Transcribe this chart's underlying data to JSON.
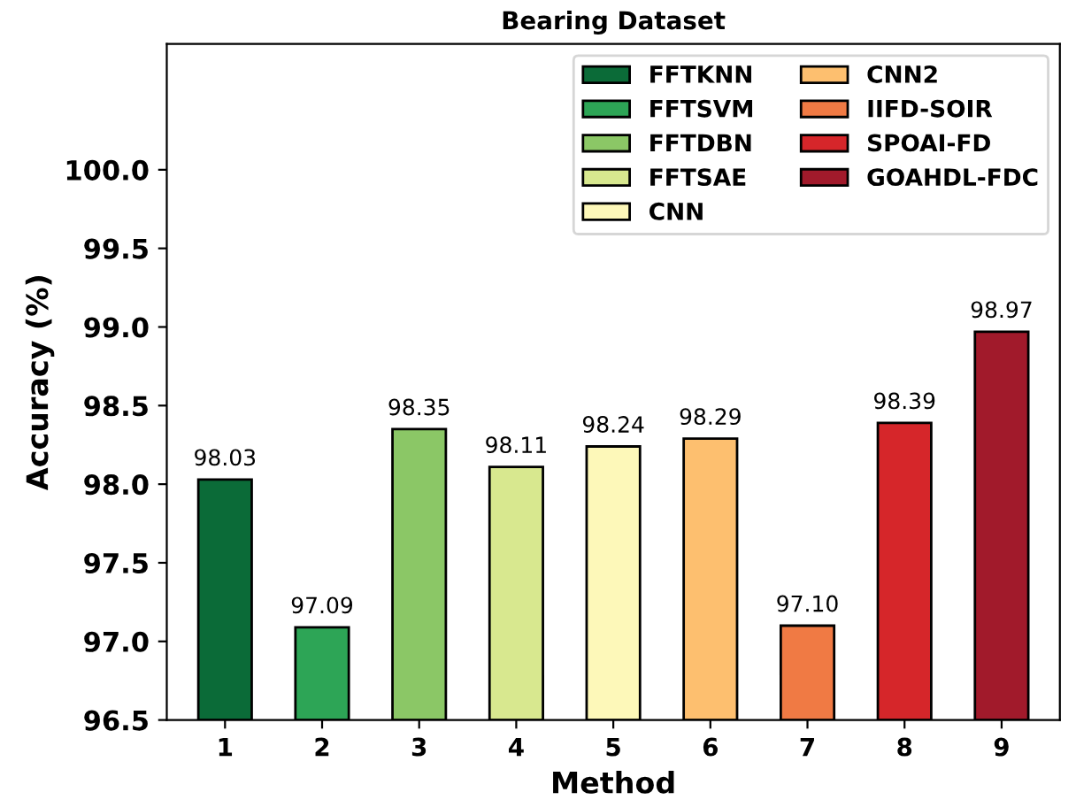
{
  "chart_data": {
    "type": "bar",
    "title": "Bearing Dataset",
    "xlabel": "Method",
    "ylabel": "Accuracy (%)",
    "categories": [
      "1",
      "2",
      "3",
      "4",
      "5",
      "6",
      "7",
      "8",
      "9"
    ],
    "series": [
      {
        "name": "FFTKNN",
        "color": "#0b6b38",
        "values": [
          98.03,
          null,
          null,
          null,
          null,
          null,
          null,
          null,
          null
        ],
        "value_labels": [
          "98.03",
          null,
          null,
          null,
          null,
          null,
          null,
          null,
          null
        ]
      },
      {
        "name": "FFTSVM",
        "color": "#2da556",
        "values": [
          null,
          97.09,
          null,
          null,
          null,
          null,
          null,
          null,
          null
        ],
        "value_labels": [
          null,
          "97.09",
          null,
          null,
          null,
          null,
          null,
          null,
          null
        ]
      },
      {
        "name": "FFTDBN",
        "color": "#8bc766",
        "values": [
          null,
          null,
          98.35,
          null,
          null,
          null,
          null,
          null,
          null
        ],
        "value_labels": [
          null,
          null,
          "98.35",
          null,
          null,
          null,
          null,
          null,
          null
        ]
      },
      {
        "name": "FFTSAE",
        "color": "#d8e88f",
        "values": [
          null,
          null,
          null,
          98.11,
          null,
          null,
          null,
          null,
          null
        ],
        "value_labels": [
          null,
          null,
          null,
          "98.11",
          null,
          null,
          null,
          null,
          null
        ]
      },
      {
        "name": "CNN",
        "color": "#fdf8b9",
        "values": [
          null,
          null,
          null,
          null,
          98.24,
          null,
          null,
          null,
          null
        ],
        "value_labels": [
          null,
          null,
          null,
          null,
          "98.24",
          null,
          null,
          null,
          null
        ]
      },
      {
        "name": "CNN2",
        "color": "#fdbf6f",
        "values": [
          null,
          null,
          null,
          null,
          null,
          98.29,
          null,
          null,
          null
        ],
        "value_labels": [
          null,
          null,
          null,
          null,
          null,
          "98.29",
          null,
          null,
          null
        ]
      },
      {
        "name": "IIFD-SOIR",
        "color": "#f07a44",
        "values": [
          null,
          null,
          null,
          null,
          null,
          null,
          97.1,
          null,
          null
        ],
        "value_labels": [
          null,
          null,
          null,
          null,
          null,
          null,
          "97.10",
          null,
          null
        ]
      },
      {
        "name": "SPOAI-FD",
        "color": "#d6262a",
        "values": [
          null,
          null,
          null,
          null,
          null,
          null,
          null,
          98.39,
          null
        ],
        "value_labels": [
          null,
          null,
          null,
          null,
          null,
          null,
          null,
          "98.39",
          null
        ]
      },
      {
        "name": "GOAHDL-FDC",
        "color": "#a11a2b",
        "values": [
          null,
          null,
          null,
          null,
          null,
          null,
          null,
          null,
          98.97
        ],
        "value_labels": [
          null,
          null,
          null,
          null,
          null,
          null,
          null,
          null,
          "98.97"
        ]
      }
    ],
    "ylim": [
      96.5,
      100.8
    ],
    "yticks": [
      {
        "value": 96.5,
        "label": "96.5"
      },
      {
        "value": 97.0,
        "label": "97.0"
      },
      {
        "value": 97.5,
        "label": "97.5"
      },
      {
        "value": 98.0,
        "label": "98.0"
      },
      {
        "value": 98.5,
        "label": "98.5"
      },
      {
        "value": 99.0,
        "label": "99.0"
      },
      {
        "value": 99.5,
        "label": "99.5"
      },
      {
        "value": 100.0,
        "label": "100.0"
      }
    ],
    "legend": "top right",
    "grid": false
  }
}
